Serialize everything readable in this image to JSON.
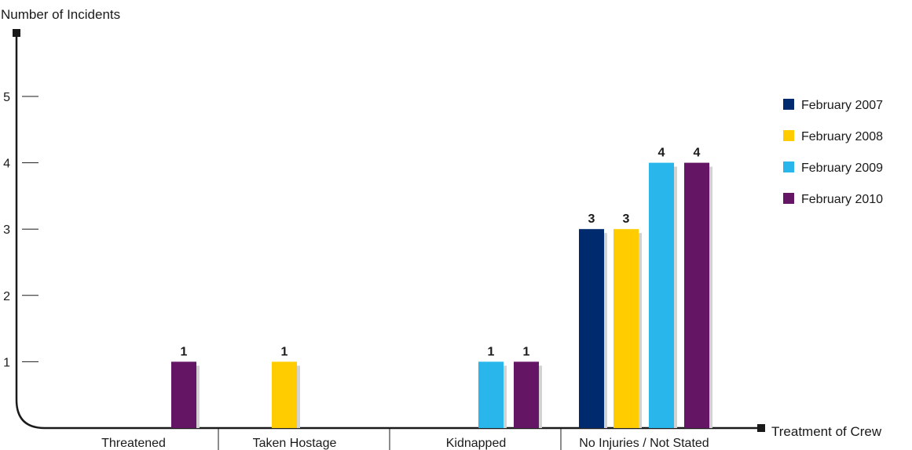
{
  "chart_data": {
    "type": "bar",
    "ylabel": "Number of Incidents",
    "xlabel": "Treatment of Crew",
    "categories": [
      "Threatened",
      "Taken Hostage",
      "Kidnapped",
      "No Injuries / Not Stated"
    ],
    "ylim": [
      0,
      6
    ],
    "yticks": [
      1,
      2,
      3,
      4,
      5
    ],
    "series": [
      {
        "name": "February 2007",
        "color": "#002a6e",
        "values": [
          null,
          null,
          null,
          3
        ]
      },
      {
        "name": "February 2008",
        "color": "#ffcc00",
        "values": [
          null,
          1,
          null,
          3
        ]
      },
      {
        "name": "February 2009",
        "color": "#29b6ea",
        "values": [
          null,
          null,
          1,
          4
        ]
      },
      {
        "name": "February 2010",
        "color": "#641563",
        "values": [
          1,
          null,
          1,
          4
        ]
      }
    ],
    "grid": false,
    "legend": "right"
  }
}
